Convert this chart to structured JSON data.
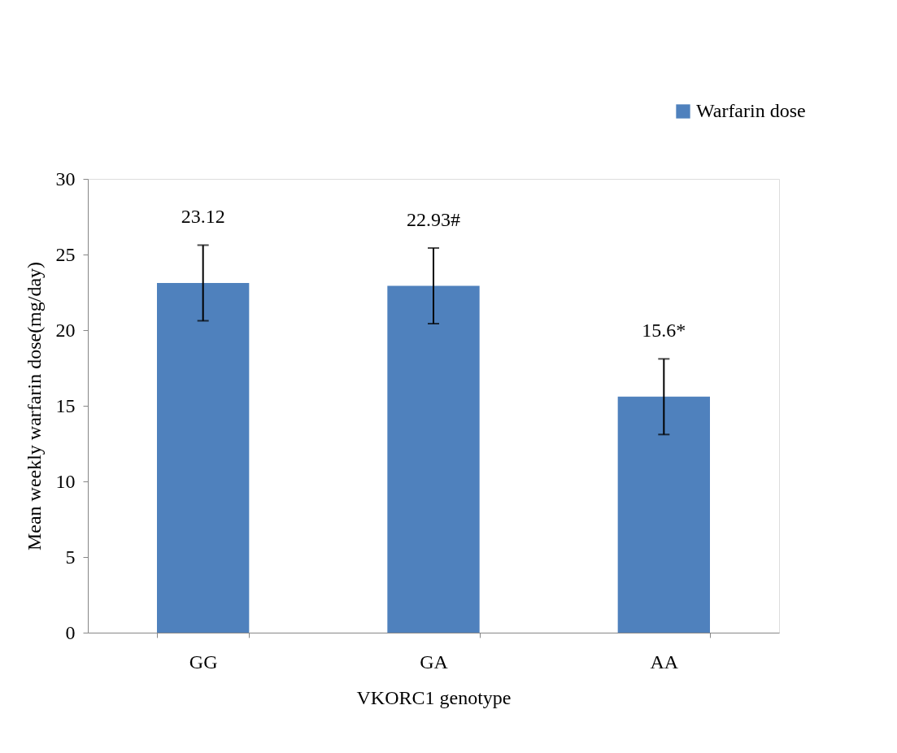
{
  "chart_data": {
    "type": "bar",
    "xlabel": "VKORC1 genotype",
    "ylabel": "Mean weekly warfarin dose(mg/day)",
    "categories": [
      "GG",
      "GA",
      "AA"
    ],
    "series": [
      {
        "name": "Warfarin dose",
        "color": "#4f81bd",
        "values": [
          23.12,
          22.93,
          15.6
        ],
        "errors": [
          2.5,
          2.5,
          2.5
        ],
        "value_labels": [
          "23.12",
          "22.93#",
          "15.6*"
        ]
      }
    ],
    "ylim": [
      0,
      30
    ],
    "yticks": [
      0,
      5,
      10,
      15,
      20,
      25,
      30
    ],
    "grid": false,
    "legend": "top right"
  }
}
